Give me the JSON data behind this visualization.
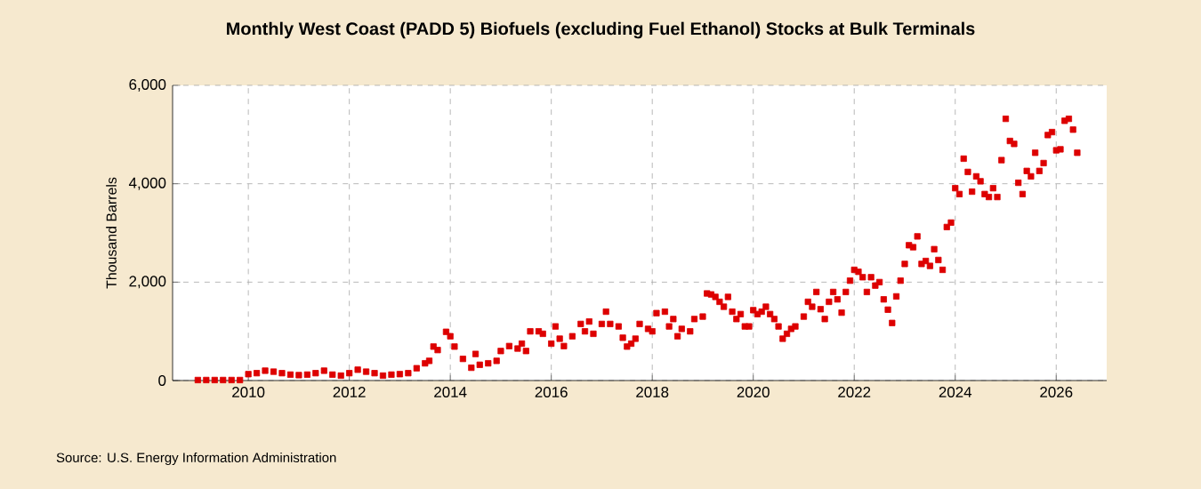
{
  "chart_data": {
    "type": "scatter",
    "title": "Monthly West Coast (PADD 5) Biofuels (excluding Fuel Ethanol) Stocks at Bulk Terminals",
    "ylabel": "Thousand Barrels",
    "annotations": [
      "Source: U.S. Energy Information Administration"
    ],
    "x": [
      "2009-01",
      "2009-03",
      "2009-05",
      "2009-07",
      "2009-09",
      "2009-11",
      "2010-01",
      "2010-03",
      "2010-05",
      "2010-07",
      "2010-09",
      "2010-11",
      "2011-01",
      "2011-03",
      "2011-05",
      "2011-07",
      "2011-09",
      "2011-11",
      "2012-01",
      "2012-03",
      "2012-05",
      "2012-07",
      "2012-09",
      "2012-11",
      "2013-01",
      "2013-03",
      "2013-05",
      "2013-07",
      "2013-08",
      "2013-09",
      "2013-10",
      "2013-12",
      "2014-01",
      "2014-02",
      "2014-04",
      "2014-06",
      "2014-07",
      "2014-08",
      "2014-10",
      "2014-12",
      "2015-01",
      "2015-03",
      "2015-05",
      "2015-06",
      "2015-07",
      "2015-08",
      "2015-10",
      "2015-11",
      "2016-01",
      "2016-02",
      "2016-03",
      "2016-04",
      "2016-06",
      "2016-08",
      "2016-09",
      "2016-10",
      "2016-11",
      "2017-01",
      "2017-02",
      "2017-03",
      "2017-05",
      "2017-06",
      "2017-07",
      "2017-08",
      "2017-09",
      "2017-10",
      "2017-12",
      "2018-01",
      "2018-02",
      "2018-04",
      "2018-05",
      "2018-06",
      "2018-07",
      "2018-08",
      "2018-10",
      "2018-11",
      "2019-01",
      "2019-02",
      "2019-03",
      "2019-04",
      "2019-05",
      "2019-06",
      "2019-07",
      "2019-08",
      "2019-09",
      "2019-10",
      "2019-11",
      "2019-12",
      "2020-01",
      "2020-02",
      "2020-03",
      "2020-04",
      "2020-05",
      "2020-06",
      "2020-07",
      "2020-08",
      "2020-09",
      "2020-10",
      "2020-11",
      "2021-01",
      "2021-02",
      "2021-03",
      "2021-04",
      "2021-05",
      "2021-06",
      "2021-07",
      "2021-08",
      "2021-09",
      "2021-10",
      "2021-11",
      "2021-12",
      "2022-01",
      "2022-02",
      "2022-03",
      "2022-04",
      "2022-05",
      "2022-06",
      "2022-07",
      "2022-08",
      "2022-09",
      "2022-10",
      "2022-11",
      "2022-12",
      "2023-01",
      "2023-02",
      "2023-03",
      "2023-04",
      "2023-05",
      "2023-06",
      "2023-07",
      "2023-08",
      "2023-09",
      "2023-10",
      "2023-11",
      "2023-12",
      "2024-01",
      "2024-02",
      "2024-03",
      "2024-04",
      "2024-05",
      "2024-06",
      "2024-07",
      "2024-08",
      "2024-09",
      "2024-10",
      "2024-11",
      "2024-12",
      "2025-01",
      "2025-02",
      "2025-03",
      "2025-04",
      "2025-05",
      "2025-06",
      "2025-07",
      "2025-08",
      "2025-09",
      "2025-10",
      "2025-11",
      "2025-12",
      "2026-01",
      "2026-02",
      "2026-03",
      "2026-04",
      "2026-05",
      "2026-06"
    ],
    "values": [
      10,
      10,
      10,
      10,
      10,
      10,
      130,
      150,
      200,
      180,
      150,
      120,
      110,
      120,
      150,
      200,
      120,
      100,
      150,
      220,
      180,
      150,
      100,
      120,
      130,
      150,
      250,
      350,
      400,
      690,
      620,
      990,
      900,
      690,
      440,
      260,
      540,
      320,
      350,
      400,
      600,
      700,
      650,
      750,
      600,
      1000,
      1000,
      950,
      750,
      1100,
      850,
      700,
      900,
      1150,
      1000,
      1200,
      950,
      1150,
      1400,
      1150,
      1100,
      870,
      690,
      750,
      850,
      1150,
      1050,
      1000,
      1370,
      1400,
      1100,
      1250,
      900,
      1050,
      1000,
      1250,
      1300,
      1770,
      1750,
      1700,
      1600,
      1500,
      1700,
      1400,
      1250,
      1350,
      1100,
      1100,
      1430,
      1350,
      1400,
      1500,
      1350,
      1250,
      1100,
      850,
      950,
      1050,
      1100,
      1300,
      1600,
      1500,
      1800,
      1450,
      1250,
      1600,
      1800,
      1650,
      1380,
      1800,
      2030,
      2250,
      2210,
      2100,
      1800,
      2100,
      1930,
      2000,
      1650,
      1440,
      1170,
      1710,
      2030,
      2370,
      2750,
      2710,
      2930,
      2370,
      2430,
      2330,
      2670,
      2450,
      2250,
      3120,
      3210,
      3910,
      3790,
      4510,
      4240,
      3840,
      4150,
      4050,
      3790,
      3730,
      3910,
      3730,
      4480,
      5320,
      4870,
      4810,
      4020,
      3790,
      4260,
      4150,
      4630,
      4260,
      4420,
      4990,
      5050,
      4680,
      4700,
      5280,
      5320,
      5100,
      4630
    ],
    "color": "#dd0000",
    "marker": "square",
    "xlim": [
      "2008-07",
      "2027-01"
    ],
    "xticks": [
      "2010",
      "2012",
      "2014",
      "2016",
      "2018",
      "2020",
      "2022",
      "2024",
      "2026"
    ],
    "ylim": [
      0,
      6000
    ],
    "yticks": [
      0,
      {
        "value": 2000,
        "label": "2,000"
      },
      {
        "value": 4000,
        "label": "4,000"
      },
      {
        "value": 6000,
        "label": "6,000"
      }
    ],
    "grid": true
  }
}
